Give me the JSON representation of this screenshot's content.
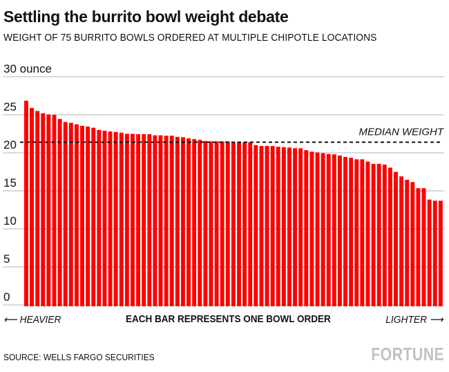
{
  "title": "Settling the burrito bowl weight debate",
  "subtitle": "WEIGHT OF 75 BURRITO BOWLS ORDERED AT MULTIPLE CHIPOTLE LOCATIONS",
  "footer": {
    "left_label": "⟵ HEAVIER",
    "center_label": "EACH BAR REPRESENTS ONE BOWL ORDER",
    "right_label": "LIGHTER ⟶",
    "source": "SOURCE: WELLS FARGO SECURITIES",
    "logo": "FORTUNE"
  },
  "colors": {
    "bar": "#ff0000",
    "grid": "#b3b3b3",
    "median": "#111111",
    "logo": "#c2c2c2"
  },
  "chart_data": {
    "type": "bar",
    "title": "Settling the burrito bowl weight debate",
    "subtitle": "WEIGHT OF 75 BURRITO BOWLS ORDERED AT MULTIPLE CHIPOTLE LOCATIONS",
    "xlabel": "EACH BAR REPRESENTS ONE BOWL ORDER",
    "ylabel": "",
    "ylim": [
      0,
      30
    ],
    "y_ticks": [
      0,
      5,
      10,
      15,
      20,
      25,
      30
    ],
    "y_tick_labels": [
      "0",
      "5",
      "10",
      "15",
      "20",
      "25",
      "30 ounce"
    ],
    "grid": true,
    "values": [
      26.85,
      25.9,
      25.5,
      25.2,
      25.05,
      25.0,
      24.45,
      24.05,
      23.95,
      23.75,
      23.55,
      23.45,
      23.3,
      23.0,
      22.9,
      22.8,
      22.75,
      22.65,
      22.5,
      22.5,
      22.45,
      22.45,
      22.45,
      22.3,
      22.3,
      22.25,
      22.25,
      22.1,
      22.05,
      21.9,
      21.8,
      21.7,
      21.55,
      21.5,
      21.5,
      21.5,
      21.5,
      21.4,
      21.4,
      21.4,
      21.4,
      21.0,
      20.9,
      20.9,
      20.9,
      20.8,
      20.75,
      20.7,
      20.6,
      20.6,
      20.35,
      20.15,
      20.05,
      19.95,
      19.85,
      19.8,
      19.65,
      19.45,
      19.35,
      19.15,
      19.15,
      18.85,
      18.55,
      18.55,
      18.45,
      18.05,
      17.5,
      16.9,
      16.45,
      16.15,
      15.35,
      15.35,
      13.85,
      13.7,
      13.7
    ],
    "annotations": [
      {
        "label": "MEDIAN WEIGHT",
        "value": 21.4
      }
    ]
  }
}
